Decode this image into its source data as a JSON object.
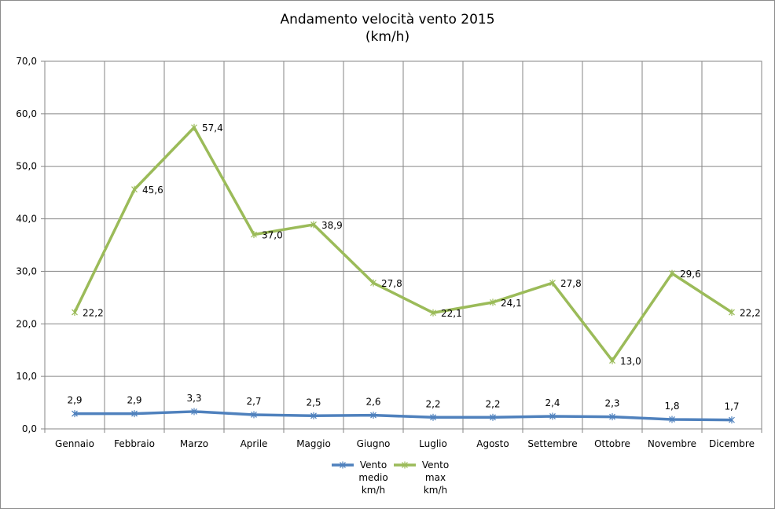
{
  "chart_data": {
    "type": "line",
    "title": "Andamento velocità vento 2015",
    "subtitle": "(km/h)",
    "categories": [
      "Gennaio",
      "Febbraio",
      "Marzo",
      "Aprile",
      "Maggio",
      "Giugno",
      "Luglio",
      "Agosto",
      "Settembre",
      "Ottobre",
      "Novembre",
      "Dicembre"
    ],
    "yticks": [
      "0,0",
      "10,0",
      "20,0",
      "30,0",
      "40,0",
      "50,0",
      "60,0",
      "70,0"
    ],
    "ylim": [
      0,
      70
    ],
    "grid": true,
    "legend_position": "bottom",
    "series": [
      {
        "name": "Vento medio km/h",
        "legend_lines": [
          "Vento",
          "medio",
          "km/h"
        ],
        "color": "#4f81bd",
        "values": [
          2.9,
          2.9,
          3.3,
          2.7,
          2.5,
          2.6,
          2.2,
          2.2,
          2.4,
          2.3,
          1.8,
          1.7
        ],
        "labels": [
          "2,9",
          "2,9",
          "3,3",
          "2,7",
          "2,5",
          "2,6",
          "2,2",
          "2,2",
          "2,4",
          "2,3",
          "1,8",
          "1,7"
        ]
      },
      {
        "name": "Vento max km/h",
        "legend_lines": [
          "Vento",
          "max",
          "km/h"
        ],
        "color": "#9bbb59",
        "values": [
          22.2,
          45.6,
          57.4,
          37.0,
          38.9,
          27.8,
          22.1,
          24.1,
          27.8,
          13.0,
          29.6,
          22.2
        ],
        "labels": [
          "22,2",
          "45,6",
          "57,4",
          "37,0",
          "38,9",
          "27,8",
          "22,1",
          "24,1",
          "27,8",
          "13,0",
          "29,6",
          "22,2"
        ]
      }
    ]
  }
}
